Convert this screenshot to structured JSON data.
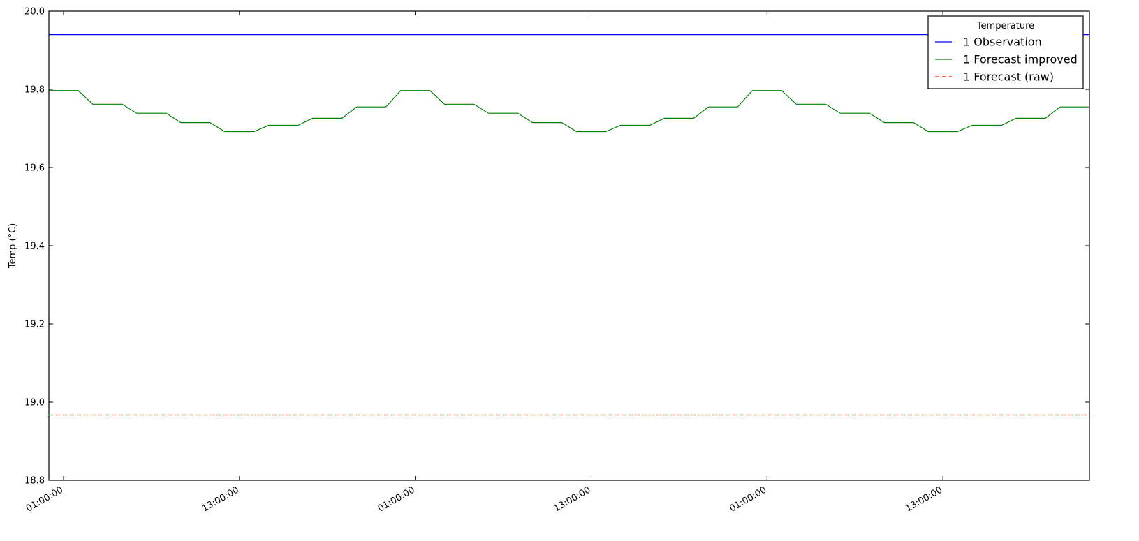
{
  "chart_data": {
    "type": "line",
    "ylabel": "Temp (°C)",
    "ylim": [
      18.8,
      20.0
    ],
    "yticks": [
      18.8,
      19.0,
      19.2,
      19.4,
      19.6,
      19.8,
      20.0
    ],
    "xlim": [
      -1,
      70
    ],
    "x_unit": "hours",
    "xticks": [
      {
        "x": 0,
        "label": "01:00:00"
      },
      {
        "x": 12,
        "label": "13:00:00"
      },
      {
        "x": 24,
        "label": "01:00:00"
      },
      {
        "x": 36,
        "label": "13:00:00"
      },
      {
        "x": 48,
        "label": "01:00:00"
      },
      {
        "x": 60,
        "label": "13:00:00"
      }
    ],
    "legend": {
      "title": "Temperature",
      "position": "top-right"
    },
    "series": [
      {
        "name": "1 Observation",
        "color": "#0000ff",
        "dash": "solid",
        "x": [
          -1,
          70
        ],
        "y": [
          19.94,
          19.94
        ]
      },
      {
        "name": "1 Forecast improved",
        "color": "#008000",
        "dash": "solid",
        "x": [
          -1,
          1,
          2,
          4,
          5,
          7,
          8,
          10,
          11,
          13,
          14,
          16,
          17,
          19,
          20,
          22,
          23,
          25,
          26,
          28,
          29,
          31,
          32,
          34,
          35,
          37,
          38,
          40,
          41,
          43,
          44,
          46,
          47,
          49,
          50,
          52,
          53,
          55,
          56,
          58,
          59,
          61,
          62,
          64,
          65,
          67,
          68,
          70
        ],
        "y": [
          19.797,
          19.797,
          19.762,
          19.762,
          19.739,
          19.739,
          19.715,
          19.715,
          19.692,
          19.692,
          19.708,
          19.708,
          19.726,
          19.726,
          19.755,
          19.755,
          19.797,
          19.797,
          19.762,
          19.762,
          19.739,
          19.739,
          19.715,
          19.715,
          19.692,
          19.692,
          19.708,
          19.708,
          19.726,
          19.726,
          19.755,
          19.755,
          19.797,
          19.797,
          19.762,
          19.762,
          19.739,
          19.739,
          19.715,
          19.715,
          19.692,
          19.692,
          19.708,
          19.708,
          19.726,
          19.726,
          19.755,
          19.755
        ]
      },
      {
        "name": "1 Forecast (raw)",
        "color": "#ff0000",
        "dash": "dashed",
        "x": [
          -1,
          70
        ],
        "y": [
          18.967,
          18.967
        ]
      }
    ]
  }
}
